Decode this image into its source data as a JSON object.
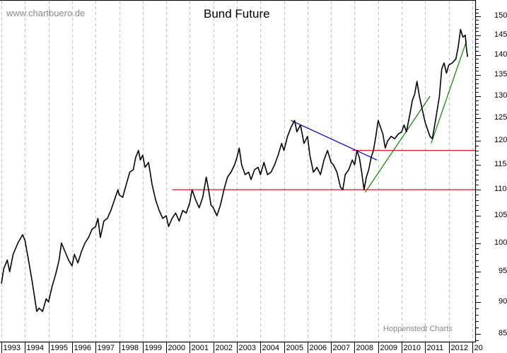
{
  "header": {
    "watermark": "www.chartbuero.de",
    "title": "Bund Future",
    "credit": "Hoppenstedt Charts"
  },
  "chart_data": {
    "type": "line",
    "title": "Bund Future",
    "xlabel": "",
    "ylabel": "",
    "ylim": [
      84,
      152
    ],
    "yscale": "log",
    "grid": {
      "vertical": true,
      "horizontal": false,
      "style": "dashed"
    },
    "y_ticks": [
      85,
      90,
      95,
      100,
      105,
      110,
      115,
      120,
      125,
      130,
      135,
      140,
      145,
      150
    ],
    "x_tick_labels": [
      "1993",
      "1994",
      "1995",
      "1996",
      "1997",
      "1998",
      "1999",
      "2000",
      "2001",
      "2002",
      "2003",
      "2004",
      "2005",
      "2006",
      "2007",
      "2008",
      "2009",
      "2010",
      "2011",
      "2012",
      "20"
    ],
    "series": [
      {
        "name": "Bund Future",
        "color": "#000000",
        "points": [
          [
            1993.0,
            93
          ],
          [
            1993.1,
            95.5
          ],
          [
            1993.25,
            97
          ],
          [
            1993.35,
            95
          ],
          [
            1993.5,
            98
          ],
          [
            1993.7,
            100
          ],
          [
            1993.9,
            101.5
          ],
          [
            1994.0,
            100.5
          ],
          [
            1994.15,
            97
          ],
          [
            1994.3,
            93.5
          ],
          [
            1994.4,
            91
          ],
          [
            1994.5,
            88.5
          ],
          [
            1994.6,
            89
          ],
          [
            1994.75,
            88.5
          ],
          [
            1994.9,
            90.5
          ],
          [
            1995.0,
            90
          ],
          [
            1995.15,
            92.5
          ],
          [
            1995.3,
            94.5
          ],
          [
            1995.45,
            97
          ],
          [
            1995.55,
            100
          ],
          [
            1995.7,
            98.5
          ],
          [
            1995.85,
            97
          ],
          [
            1996.0,
            96
          ],
          [
            1996.1,
            98
          ],
          [
            1996.25,
            96.5
          ],
          [
            1996.4,
            98.5
          ],
          [
            1996.55,
            100
          ],
          [
            1996.7,
            101
          ],
          [
            1996.85,
            102.5
          ],
          [
            1997.0,
            103
          ],
          [
            1997.1,
            104.5
          ],
          [
            1997.2,
            101
          ],
          [
            1997.35,
            104
          ],
          [
            1997.5,
            104.5
          ],
          [
            1997.65,
            106
          ],
          [
            1997.8,
            108
          ],
          [
            1997.95,
            110
          ],
          [
            1998.0,
            109
          ],
          [
            1998.15,
            108.5
          ],
          [
            1998.3,
            111
          ],
          [
            1998.45,
            113.5
          ],
          [
            1998.6,
            114
          ],
          [
            1998.7,
            116.5
          ],
          [
            1998.82,
            118
          ],
          [
            1998.9,
            116
          ],
          [
            1999.0,
            117
          ],
          [
            1999.1,
            114.5
          ],
          [
            1999.25,
            115.5
          ],
          [
            1999.4,
            111
          ],
          [
            1999.55,
            108
          ],
          [
            1999.7,
            106
          ],
          [
            1999.85,
            104.5
          ],
          [
            2000.0,
            105
          ],
          [
            2000.1,
            103
          ],
          [
            2000.25,
            104.5
          ],
          [
            2000.4,
            105.5
          ],
          [
            2000.55,
            104
          ],
          [
            2000.7,
            106
          ],
          [
            2000.85,
            105.5
          ],
          [
            2001.0,
            107.5
          ],
          [
            2001.1,
            110
          ],
          [
            2001.25,
            108
          ],
          [
            2001.4,
            106.5
          ],
          [
            2001.55,
            108.5
          ],
          [
            2001.7,
            112.5
          ],
          [
            2001.8,
            110
          ],
          [
            2001.9,
            107
          ],
          [
            2002.0,
            106.5
          ],
          [
            2002.15,
            105
          ],
          [
            2002.3,
            107
          ],
          [
            2002.45,
            110
          ],
          [
            2002.6,
            112.5
          ],
          [
            2002.75,
            113.5
          ],
          [
            2002.9,
            115
          ],
          [
            2003.0,
            116.5
          ],
          [
            2003.1,
            118.5
          ],
          [
            2003.2,
            115
          ],
          [
            2003.35,
            113
          ],
          [
            2003.5,
            113.5
          ],
          [
            2003.6,
            112
          ],
          [
            2003.75,
            114
          ],
          [
            2003.9,
            114.5
          ],
          [
            2004.0,
            113
          ],
          [
            2004.15,
            115.5
          ],
          [
            2004.3,
            113
          ],
          [
            2004.45,
            113.5
          ],
          [
            2004.6,
            115
          ],
          [
            2004.75,
            117
          ],
          [
            2004.9,
            119.5
          ],
          [
            2005.0,
            118
          ],
          [
            2005.15,
            121
          ],
          [
            2005.3,
            123
          ],
          [
            2005.45,
            124.5
          ],
          [
            2005.55,
            122
          ],
          [
            2005.7,
            123.5
          ],
          [
            2005.85,
            119.5
          ],
          [
            2006.0,
            121
          ],
          [
            2006.1,
            117
          ],
          [
            2006.25,
            113.5
          ],
          [
            2006.4,
            114.5
          ],
          [
            2006.55,
            113
          ],
          [
            2006.7,
            116
          ],
          [
            2006.85,
            118
          ],
          [
            2007.0,
            115.5
          ],
          [
            2007.1,
            115
          ],
          [
            2007.25,
            113.5
          ],
          [
            2007.4,
            110.5
          ],
          [
            2007.5,
            110
          ],
          [
            2007.6,
            113
          ],
          [
            2007.75,
            114
          ],
          [
            2007.9,
            116
          ],
          [
            2008.0,
            115
          ],
          [
            2008.1,
            118
          ],
          [
            2008.2,
            116.5
          ],
          [
            2008.3,
            113.5
          ],
          [
            2008.4,
            110
          ],
          [
            2008.5,
            112.5
          ],
          [
            2008.6,
            114
          ],
          [
            2008.7,
            116.5
          ],
          [
            2008.8,
            118
          ],
          [
            2008.9,
            121
          ],
          [
            2009.0,
            124.5
          ],
          [
            2009.1,
            123
          ],
          [
            2009.2,
            121.5
          ],
          [
            2009.3,
            118.5
          ],
          [
            2009.4,
            120
          ],
          [
            2009.55,
            121
          ],
          [
            2009.7,
            120.5
          ],
          [
            2009.85,
            121.5
          ],
          [
            2010.0,
            122
          ],
          [
            2010.1,
            123.5
          ],
          [
            2010.2,
            122
          ],
          [
            2010.35,
            126
          ],
          [
            2010.45,
            129
          ],
          [
            2010.55,
            130.5
          ],
          [
            2010.65,
            133.5
          ],
          [
            2010.75,
            130
          ],
          [
            2010.85,
            127.5
          ],
          [
            2011.0,
            124
          ],
          [
            2011.1,
            122.5
          ],
          [
            2011.2,
            121
          ],
          [
            2011.3,
            120.5
          ],
          [
            2011.45,
            125
          ],
          [
            2011.6,
            130
          ],
          [
            2011.7,
            136.5
          ],
          [
            2011.8,
            138
          ],
          [
            2011.9,
            135.5
          ],
          [
            2012.0,
            137.5
          ],
          [
            2012.15,
            138
          ],
          [
            2012.3,
            139
          ],
          [
            2012.4,
            142
          ],
          [
            2012.5,
            146.5
          ],
          [
            2012.6,
            144.5
          ],
          [
            2012.7,
            145
          ],
          [
            2012.75,
            141.5
          ],
          [
            2012.8,
            139.5
          ]
        ]
      }
    ],
    "annotations": [
      {
        "type": "hline",
        "label": "support",
        "color": "#e00000",
        "y": 110,
        "x_from": 2000.25,
        "x_to": 2014
      },
      {
        "type": "hline",
        "label": "resistance",
        "color": "#e00000",
        "y": 118,
        "x_from": 2007.9,
        "x_to": 2014
      },
      {
        "type": "trendline",
        "label": "downtrend",
        "color": "#0000cc",
        "from": [
          2005.3,
          124.5
        ],
        "to": [
          2008.95,
          116
        ]
      },
      {
        "type": "trendline",
        "label": "uptrend-1",
        "color": "#008800",
        "from": [
          2008.45,
          109.5
        ],
        "to": [
          2011.2,
          130
        ]
      },
      {
        "type": "trendline",
        "label": "uptrend-2",
        "color": "#008800",
        "from": [
          2011.25,
          119.5
        ],
        "to": [
          2012.75,
          143.5
        ]
      }
    ]
  }
}
